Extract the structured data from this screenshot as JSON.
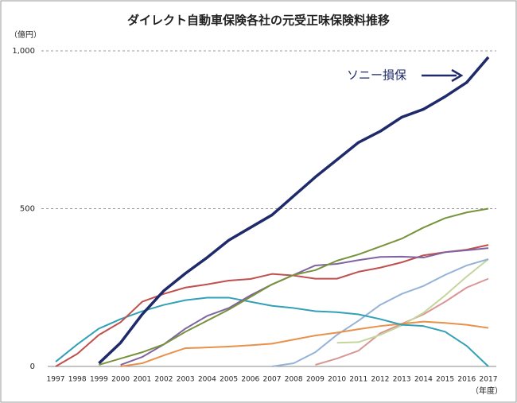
{
  "chart_data": {
    "type": "line",
    "title": "ダイレクト自動車保険各社の元受正味保険料推移",
    "y_label": "（億円）",
    "x_label": "（年度）",
    "categories": [
      "1997",
      "1998",
      "1999",
      "2000",
      "2001",
      "2002",
      "2003",
      "2004",
      "2005",
      "2006",
      "2007",
      "2008",
      "2009",
      "2010",
      "2011",
      "2012",
      "2013",
      "2014",
      "2015",
      "2016",
      "2017"
    ],
    "ylim": [
      0,
      1000
    ],
    "yticks": [
      0,
      500,
      {
        "value": 1000,
        "label": "1,000"
      }
    ],
    "grid": true,
    "series": [
      {
        "name": "ソニー損保",
        "color": "#1f2a6b",
        "values": [
          null,
          null,
          10,
          75,
          165,
          240,
          295,
          345,
          400,
          440,
          480,
          540,
          600,
          655,
          710,
          745,
          790,
          815,
          855,
          900,
          980
        ]
      },
      {
        "color": "#77933c",
        "values": [
          null,
          null,
          5,
          25,
          45,
          70,
          110,
          145,
          180,
          220,
          260,
          290,
          305,
          335,
          355,
          380,
          405,
          440,
          470,
          488,
          500
        ]
      },
      {
        "color": "#8064a2",
        "values": [
          null,
          null,
          null,
          5,
          30,
          70,
          120,
          160,
          185,
          225,
          260,
          290,
          320,
          325,
          337,
          347,
          348,
          345,
          362,
          368,
          375
        ]
      },
      {
        "color": "#c0504d",
        "values": [
          0,
          40,
          100,
          140,
          205,
          230,
          250,
          260,
          272,
          277,
          293,
          288,
          278,
          278,
          300,
          313,
          330,
          352,
          362,
          370,
          385
        ]
      },
      {
        "color": "#31a0b8",
        "values": [
          15,
          70,
          120,
          150,
          175,
          195,
          210,
          218,
          218,
          205,
          192,
          185,
          175,
          172,
          165,
          150,
          132,
          128,
          110,
          65,
          0
        ]
      },
      {
        "color": "#e8914a",
        "values": [
          null,
          null,
          null,
          0,
          10,
          35,
          58,
          60,
          63,
          67,
          72,
          85,
          98,
          107,
          118,
          128,
          135,
          142,
          138,
          132,
          122
        ]
      },
      {
        "color": "#95b3d7",
        "values": [
          null,
          null,
          null,
          null,
          null,
          null,
          null,
          null,
          null,
          null,
          0,
          10,
          45,
          100,
          145,
          195,
          230,
          255,
          290,
          320,
          340
        ]
      },
      {
        "color": "#c3d69b",
        "values": [
          null,
          null,
          null,
          null,
          null,
          null,
          null,
          null,
          null,
          null,
          null,
          null,
          null,
          75,
          77,
          100,
          130,
          170,
          225,
          285,
          340
        ]
      },
      {
        "color": "#d99694",
        "values": [
          null,
          null,
          null,
          null,
          null,
          null,
          null,
          null,
          null,
          null,
          null,
          null,
          5,
          25,
          50,
          105,
          135,
          165,
          205,
          250,
          278
        ]
      }
    ]
  }
}
